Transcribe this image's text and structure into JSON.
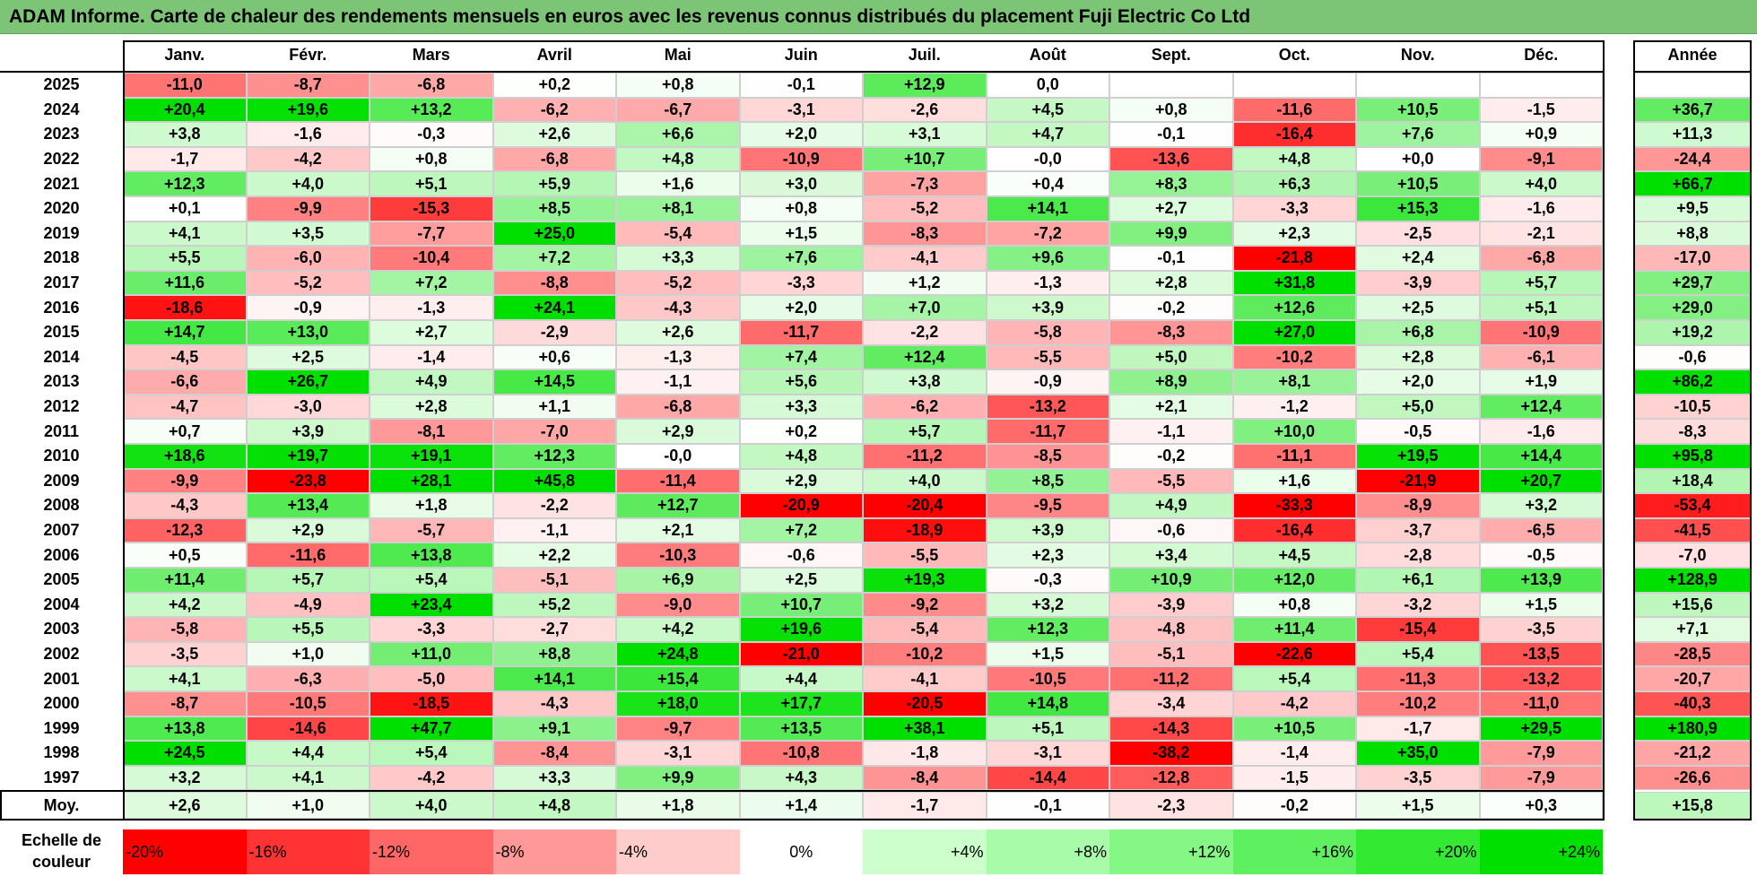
{
  "title": "ADAM Informe. Carte de chaleur des rendements mensuels en euros avec les revenus connus distribués du placement Fuji Electric Co Ltd",
  "chart_data": {
    "type": "heatmap",
    "title": "ADAM Informe. Carte de chaleur des rendements mensuels en euros avec les revenus connus distribués du placement Fuji Electric Co Ltd",
    "columns": [
      "Janv.",
      "Févr.",
      "Mars",
      "Avril",
      "Mai",
      "Juin",
      "Juil.",
      "Août",
      "Sept.",
      "Oct.",
      "Nov.",
      "Déc."
    ],
    "year_column_label": "Année",
    "rows": [
      {
        "year": "2025",
        "values": [
          "-11,0",
          "-8,7",
          "-6,8",
          "+0,2",
          "+0,8",
          "-0,1",
          "+12,9",
          "0,0",
          "",
          "",
          "",
          ""
        ],
        "annual": ""
      },
      {
        "year": "2024",
        "values": [
          "+20,4",
          "+19,6",
          "+13,2",
          "-6,2",
          "-6,7",
          "-3,1",
          "-2,6",
          "+4,5",
          "+0,8",
          "-11,6",
          "+10,5",
          "-1,5"
        ],
        "annual": "+36,7"
      },
      {
        "year": "2023",
        "values": [
          "+3,8",
          "-1,6",
          "-0,3",
          "+2,6",
          "+6,6",
          "+2,0",
          "+3,1",
          "+4,7",
          "-0,1",
          "-16,4",
          "+7,6",
          "+0,9"
        ],
        "annual": "+11,3"
      },
      {
        "year": "2022",
        "values": [
          "-1,7",
          "-4,2",
          "+0,8",
          "-6,8",
          "+4,8",
          "-10,9",
          "+10,7",
          "-0,0",
          "-13,6",
          "+4,8",
          "+0,0",
          "-9,1"
        ],
        "annual": "-24,4"
      },
      {
        "year": "2021",
        "values": [
          "+12,3",
          "+4,0",
          "+5,1",
          "+5,9",
          "+1,6",
          "+3,0",
          "-7,3",
          "+0,4",
          "+8,3",
          "+6,3",
          "+10,5",
          "+4,0"
        ],
        "annual": "+66,7"
      },
      {
        "year": "2020",
        "values": [
          "+0,1",
          "-9,9",
          "-15,3",
          "+8,5",
          "+8,1",
          "+0,8",
          "-5,2",
          "+14,1",
          "+2,7",
          "-3,3",
          "+15,3",
          "-1,6"
        ],
        "annual": "+9,5"
      },
      {
        "year": "2019",
        "values": [
          "+4,1",
          "+3,5",
          "-7,7",
          "+25,0",
          "-5,4",
          "+1,5",
          "-8,3",
          "-7,2",
          "+9,9",
          "+2,3",
          "-2,5",
          "-2,1"
        ],
        "annual": "+8,8"
      },
      {
        "year": "2018",
        "values": [
          "+5,5",
          "-6,0",
          "-10,4",
          "+7,2",
          "+3,3",
          "+7,6",
          "-4,1",
          "+9,6",
          "-0,1",
          "-21,8",
          "+2,4",
          "-6,8"
        ],
        "annual": "-17,0"
      },
      {
        "year": "2017",
        "values": [
          "+11,6",
          "-5,2",
          "+7,2",
          "-8,8",
          "-5,2",
          "-3,3",
          "+1,2",
          "-1,3",
          "+2,8",
          "+31,8",
          "-3,9",
          "+5,7"
        ],
        "annual": "+29,7"
      },
      {
        "year": "2016",
        "values": [
          "-18,6",
          "-0,9",
          "-1,3",
          "+24,1",
          "-4,3",
          "+2,0",
          "+7,0",
          "+3,9",
          "-0,2",
          "+12,6",
          "+2,5",
          "+5,1"
        ],
        "annual": "+29,0"
      },
      {
        "year": "2015",
        "values": [
          "+14,7",
          "+13,0",
          "+2,7",
          "-2,9",
          "+2,6",
          "-11,7",
          "-2,2",
          "-5,8",
          "-8,3",
          "+27,0",
          "+6,8",
          "-10,9"
        ],
        "annual": "+19,2"
      },
      {
        "year": "2014",
        "values": [
          "-4,5",
          "+2,5",
          "-1,4",
          "+0,6",
          "-1,3",
          "+7,4",
          "+12,4",
          "-5,5",
          "+5,0",
          "-10,2",
          "+2,8",
          "-6,1"
        ],
        "annual": "-0,6"
      },
      {
        "year": "2013",
        "values": [
          "-6,6",
          "+26,7",
          "+4,9",
          "+14,5",
          "-1,1",
          "+5,6",
          "+3,8",
          "-0,9",
          "+8,9",
          "+8,1",
          "+2,0",
          "+1,9"
        ],
        "annual": "+86,2"
      },
      {
        "year": "2012",
        "values": [
          "-4,7",
          "-3,0",
          "+2,8",
          "+1,1",
          "-6,8",
          "+3,3",
          "-6,2",
          "-13,2",
          "+2,1",
          "-1,2",
          "+5,0",
          "+12,4"
        ],
        "annual": "-10,5"
      },
      {
        "year": "2011",
        "values": [
          "+0,7",
          "+3,9",
          "-8,1",
          "-7,0",
          "+2,9",
          "+0,2",
          "+5,7",
          "-11,7",
          "-1,1",
          "+10,0",
          "-0,5",
          "-1,6"
        ],
        "annual": "-8,3"
      },
      {
        "year": "2010",
        "values": [
          "+18,6",
          "+19,7",
          "+19,1",
          "+12,3",
          "-0,0",
          "+4,8",
          "-11,2",
          "-8,5",
          "-0,2",
          "-11,1",
          "+19,5",
          "+14,4"
        ],
        "annual": "+95,8"
      },
      {
        "year": "2009",
        "values": [
          "-9,9",
          "-23,8",
          "+28,1",
          "+45,8",
          "-11,4",
          "+2,9",
          "+4,0",
          "+8,5",
          "-5,5",
          "+1,6",
          "-21,9",
          "+20,7"
        ],
        "annual": "+18,4"
      },
      {
        "year": "2008",
        "values": [
          "-4,3",
          "+13,4",
          "+1,8",
          "-2,2",
          "+12,7",
          "-20,9",
          "-20,4",
          "-9,5",
          "+4,9",
          "-33,3",
          "-8,9",
          "+3,2"
        ],
        "annual": "-53,4"
      },
      {
        "year": "2007",
        "values": [
          "-12,3",
          "+2,9",
          "-5,7",
          "-1,1",
          "+2,1",
          "+7,2",
          "-18,9",
          "+3,9",
          "-0,6",
          "-16,4",
          "-3,7",
          "-6,5"
        ],
        "annual": "-41,5"
      },
      {
        "year": "2006",
        "values": [
          "+0,5",
          "-11,6",
          "+13,8",
          "+2,2",
          "-10,3",
          "-0,6",
          "-5,5",
          "+2,3",
          "+3,4",
          "+4,5",
          "-2,8",
          "-0,5"
        ],
        "annual": "-7,0"
      },
      {
        "year": "2005",
        "values": [
          "+11,4",
          "+5,7",
          "+5,4",
          "-5,1",
          "+6,9",
          "+2,5",
          "+19,3",
          "-0,3",
          "+10,9",
          "+12,0",
          "+6,1",
          "+13,9"
        ],
        "annual": "+128,9"
      },
      {
        "year": "2004",
        "values": [
          "+4,2",
          "-4,9",
          "+23,4",
          "+5,2",
          "-9,0",
          "+10,7",
          "-9,2",
          "+3,2",
          "-3,9",
          "+0,8",
          "-3,2",
          "+1,5"
        ],
        "annual": "+15,6"
      },
      {
        "year": "2003",
        "values": [
          "-5,8",
          "+5,5",
          "-3,3",
          "-2,7",
          "+4,2",
          "+19,6",
          "-5,4",
          "+12,3",
          "-4,8",
          "+11,4",
          "-15,4",
          "-3,5"
        ],
        "annual": "+7,1"
      },
      {
        "year": "2002",
        "values": [
          "-3,5",
          "+1,0",
          "+11,0",
          "+8,8",
          "+24,8",
          "-21,0",
          "-10,2",
          "+1,5",
          "-5,1",
          "-22,6",
          "+5,4",
          "-13,5"
        ],
        "annual": "-28,5"
      },
      {
        "year": "2001",
        "values": [
          "+4,1",
          "-6,3",
          "-5,0",
          "+14,1",
          "+15,4",
          "+4,4",
          "-4,1",
          "-10,5",
          "-11,2",
          "+5,4",
          "-11,3",
          "-13,2"
        ],
        "annual": "-20,7"
      },
      {
        "year": "2000",
        "values": [
          "-8,7",
          "-10,5",
          "-18,5",
          "-4,3",
          "+18,0",
          "+17,7",
          "-20,5",
          "+14,8",
          "-3,4",
          "-4,2",
          "-10,2",
          "-11,0"
        ],
        "annual": "-40,3"
      },
      {
        "year": "1999",
        "values": [
          "+13,8",
          "-14,6",
          "+47,7",
          "+9,1",
          "-9,7",
          "+13,5",
          "+38,1",
          "+5,1",
          "-14,3",
          "+10,5",
          "-1,7",
          "+29,5"
        ],
        "annual": "+180,9"
      },
      {
        "year": "1998",
        "values": [
          "+24,5",
          "+4,4",
          "+5,4",
          "-8,4",
          "-3,1",
          "-10,8",
          "-1,8",
          "-3,1",
          "-38,2",
          "-1,4",
          "+35,0",
          "-7,9"
        ],
        "annual": "-21,2"
      },
      {
        "year": "1997",
        "values": [
          "+3,2",
          "+4,1",
          "-4,2",
          "+3,3",
          "+9,9",
          "+4,3",
          "-8,4",
          "-14,4",
          "-12,8",
          "-1,5",
          "-3,5",
          "-7,9"
        ],
        "annual": "-26,6"
      }
    ],
    "average": {
      "label": "Moy.",
      "values": [
        "+2,6",
        "+1,0",
        "+4,0",
        "+4,8",
        "+1,8",
        "+1,4",
        "-1,7",
        "-0,1",
        "-2,3",
        "-0,2",
        "+1,5",
        "+0,3"
      ],
      "annual": "+15,8"
    },
    "scale": {
      "label": "Echelle de couleur",
      "entries": [
        {
          "label": "-20%",
          "value": -20,
          "color": "#ff0000",
          "align": "left"
        },
        {
          "label": "-16%",
          "value": -16,
          "color": "#ff3333",
          "align": "left"
        },
        {
          "label": "-12%",
          "value": -12,
          "color": "#ff6666",
          "align": "left"
        },
        {
          "label": "-8%",
          "value": -8,
          "color": "#ff9999",
          "align": "left"
        },
        {
          "label": "-4%",
          "value": -4,
          "color": "#ffcccc",
          "align": "left"
        },
        {
          "label": "0%",
          "value": 0,
          "color": "#ffffff",
          "align": "center"
        },
        {
          "label": "+4%",
          "value": 4,
          "color": "#ccffcc",
          "align": "right"
        },
        {
          "label": "+8%",
          "value": 8,
          "color": "#a8fba8",
          "align": "right"
        },
        {
          "label": "+12%",
          "value": 12,
          "color": "#85f785",
          "align": "right"
        },
        {
          "label": "+16%",
          "value": 16,
          "color": "#5ef05e",
          "align": "right"
        },
        {
          "label": "+20%",
          "value": 20,
          "color": "#33ea33",
          "align": "right"
        },
        {
          "label": "+24%",
          "value": 24,
          "color": "#00e000",
          "align": "right"
        }
      ]
    },
    "grid": true,
    "legend_position": "bottom"
  }
}
